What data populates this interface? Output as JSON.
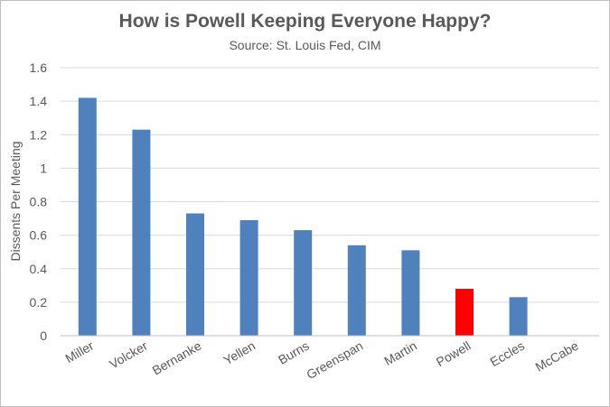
{
  "chart_data": {
    "type": "bar",
    "title": "How is Powell Keeping Everyone Happy?",
    "subtitle": "Source: St. Louis Fed, CIM",
    "xlabel": "",
    "ylabel": "Dissents Per Meeting",
    "ylim": [
      0,
      1.6
    ],
    "yticks": [
      0,
      0.2,
      0.4,
      0.6,
      0.8,
      1,
      1.2,
      1.4,
      1.6
    ],
    "ytick_labels": [
      "0",
      "0.2",
      "0.4",
      "0.6",
      "0.8",
      "1",
      "1.2",
      "1.4",
      "1.6"
    ],
    "grid": true,
    "legend": "none",
    "categories": [
      "Miller",
      "Volcker",
      "Bernanke",
      "Yellen",
      "Burns",
      "Greenspan",
      "Martin",
      "Powell",
      "Eccles",
      "McCabe"
    ],
    "values": [
      1.42,
      1.23,
      0.73,
      0.69,
      0.63,
      0.54,
      0.51,
      0.28,
      0.23,
      0
    ],
    "colors": {
      "default": "#4f81bd",
      "highlight": "#ff0000",
      "highlight_category": "Powell",
      "grid": "#d9d9d9",
      "axis": "#bfbfbf"
    }
  }
}
